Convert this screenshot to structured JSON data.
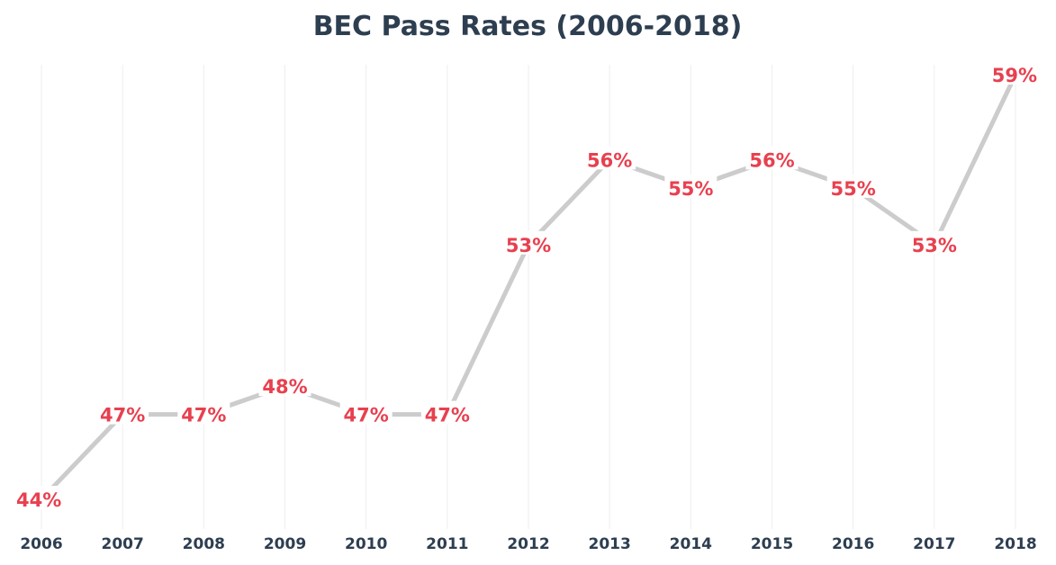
{
  "chart_data": {
    "type": "line",
    "title": "BEC Pass Rates (2006-2018)",
    "xlabel": "",
    "ylabel": "",
    "categories": [
      "2006",
      "2007",
      "2008",
      "2009",
      "2010",
      "2011",
      "2012",
      "2013",
      "2014",
      "2015",
      "2016",
      "2017",
      "2018"
    ],
    "series": [
      {
        "values": [
          44,
          47,
          47,
          48,
          47,
          47,
          53,
          56,
          55,
          56,
          55,
          53,
          59
        ],
        "labels": [
          "44%",
          "47%",
          "47%",
          "48%",
          "47%",
          "47%",
          "53%",
          "56%",
          "55%",
          "56%",
          "55%",
          "53%",
          "59%"
        ]
      }
    ],
    "ylim": [
      44,
      59
    ],
    "grid": {
      "vertical": true,
      "horizontal": false
    },
    "colors": {
      "line": "#cccccc",
      "label": "#e8404f",
      "text": "#2d3e50",
      "grid": "#eeeeee"
    }
  }
}
